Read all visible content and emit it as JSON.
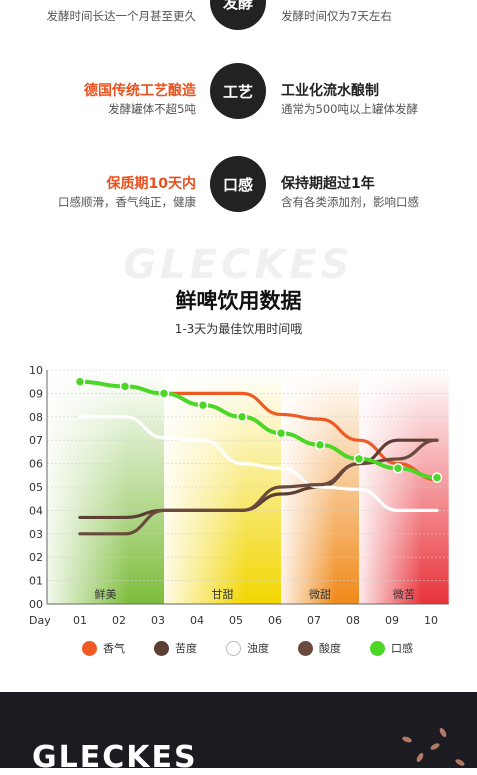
{
  "rows": [
    {
      "left_title": "",
      "left_sub": "发酵时间长达一个月甚至更久",
      "icon": "发酵",
      "right_title": "",
      "right_sub": "发酵时间仅为7天左右"
    },
    {
      "left_title": "德国传统工艺酿造",
      "left_sub": "发酵罐体不超5吨",
      "icon": "工艺",
      "right_title": "工业化流水酿制",
      "right_sub": "通常为500吨以上罐体发酵"
    },
    {
      "left_title": "保质期10天内",
      "left_sub": "口感顺滑，香气纯正，健康",
      "icon": "口感",
      "right_title": "保持期超过1年",
      "right_sub": "含有各类添加剂，影响口感"
    }
  ],
  "watermark": "GLECKES",
  "footer_text": "GLECKES",
  "chart_data": {
    "type": "line",
    "title": "鲜啤饮用数据",
    "subtitle": "1-3天为最佳饮用时间哦",
    "xlabel": "Day",
    "ylabel": "",
    "x_ticks": [
      "01",
      "02",
      "03",
      "04",
      "05",
      "06",
      "07",
      "08",
      "09",
      "10"
    ],
    "y_ticks": [
      "00",
      "01",
      "02",
      "03",
      "04",
      "05",
      "06",
      "07",
      "08",
      "09",
      "10"
    ],
    "ylim": [
      0,
      10
    ],
    "zones": [
      {
        "label": "鲜美",
        "from": 0,
        "to": 3,
        "color": "#7dbd3c"
      },
      {
        "label": "甘甜",
        "from": 3,
        "to": 6,
        "color": "#f2d600"
      },
      {
        "label": "微甜",
        "from": 6,
        "to": 8,
        "color": "#f08a1a"
      },
      {
        "label": "微苦",
        "from": 8,
        "to": 10.3,
        "color": "#e8333a"
      }
    ],
    "series": [
      {
        "name": "香气",
        "color": "#ee5a24",
        "x": [
          3,
          4,
          5,
          6,
          7,
          8,
          9,
          10
        ],
        "values": [
          9.0,
          9.0,
          9.0,
          8.1,
          7.9,
          7.0,
          6.0,
          5.3
        ]
      },
      {
        "name": "苦度",
        "color": "#5c3e34",
        "x": [
          1,
          2,
          3,
          4,
          5,
          6,
          7,
          8,
          9,
          10
        ],
        "values": [
          3.7,
          3.7,
          4.0,
          4.0,
          4.0,
          4.7,
          5.0,
          6.0,
          7.0,
          7.0
        ]
      },
      {
        "name": "浊度",
        "color": "#ffffff",
        "x": [
          1,
          2,
          3,
          4,
          5,
          6,
          7,
          8,
          9,
          10
        ],
        "values": [
          8.0,
          8.0,
          7.1,
          7.0,
          6.0,
          5.8,
          5.0,
          4.9,
          4.0,
          4.0
        ]
      },
      {
        "name": "酸度",
        "color": "#6b4a3e",
        "x": [
          1,
          2,
          3,
          4,
          5,
          6,
          7,
          8,
          9,
          10
        ],
        "values": [
          3.0,
          3.0,
          4.0,
          4.0,
          4.0,
          5.0,
          5.1,
          6.0,
          6.2,
          7.0
        ]
      },
      {
        "name": "口感",
        "color": "#4cd628",
        "x": [
          1,
          2,
          3,
          4,
          5,
          6,
          7,
          8,
          9,
          10
        ],
        "values": [
          9.5,
          9.3,
          9.0,
          8.5,
          8.0,
          7.3,
          6.8,
          6.2,
          5.8,
          5.4
        ],
        "markers": true
      }
    ],
    "legend_position": "bottom"
  }
}
